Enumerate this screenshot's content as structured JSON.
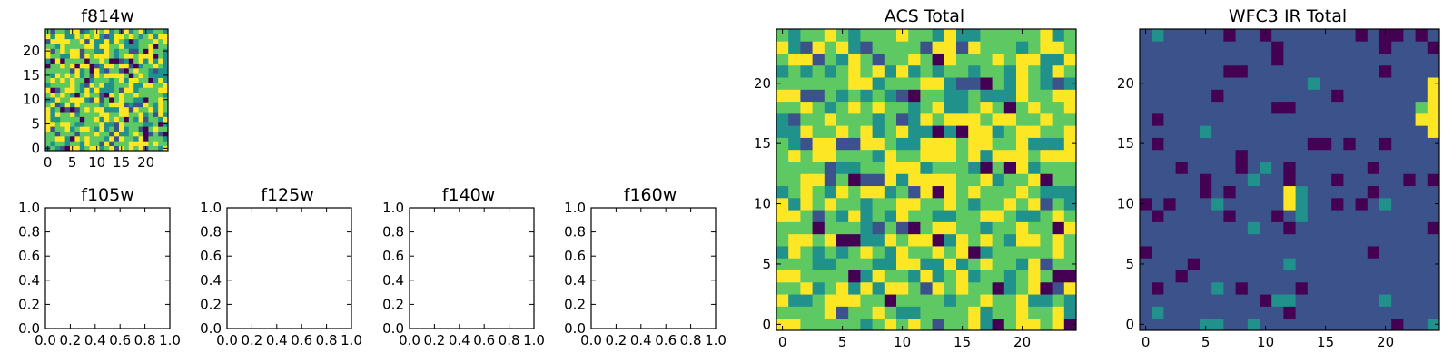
{
  "palette": [
    "#440154",
    "#3b528b",
    "#21918c",
    "#5ec962",
    "#fde725"
  ],
  "chart_data": [
    {
      "id": "f814w",
      "type": "heatmap",
      "title": "f814w",
      "grid": [
        25,
        25
      ],
      "xlim": [
        -0.5,
        24.5
      ],
      "ylim": [
        -0.5,
        24.5
      ],
      "xticks": [
        0,
        5,
        10,
        15,
        20
      ],
      "yticks": [
        0,
        5,
        10,
        15,
        20
      ],
      "xtick_labels": [
        "0",
        "5",
        "10",
        "15",
        "20"
      ],
      "ytick_labels": [
        "0",
        "5",
        "10",
        "15",
        "20"
      ],
      "level_weights": [
        0.05,
        0.08,
        0.18,
        0.37,
        0.32
      ],
      "seed": 814
    },
    {
      "id": "f105w",
      "type": "heatmap",
      "title": "f105w",
      "xlim": [
        0,
        1
      ],
      "ylim": [
        0,
        1
      ],
      "xticks": [
        0,
        0.2,
        0.4,
        0.6,
        0.8,
        1
      ],
      "yticks": [
        0,
        0.2,
        0.4,
        0.6,
        0.8,
        1
      ],
      "xtick_labels": [
        "0.0",
        "0.2",
        "0.4",
        "0.6",
        "0.8",
        "1.0"
      ],
      "ytick_labels": [
        "0.0",
        "0.2",
        "0.4",
        "0.6",
        "0.8",
        "1.0"
      ]
    },
    {
      "id": "f125w",
      "type": "heatmap",
      "title": "f125w",
      "xlim": [
        0,
        1
      ],
      "ylim": [
        0,
        1
      ],
      "xticks": [
        0,
        0.2,
        0.4,
        0.6,
        0.8,
        1
      ],
      "yticks": [
        0,
        0.2,
        0.4,
        0.6,
        0.8,
        1
      ],
      "xtick_labels": [
        "0.0",
        "0.2",
        "0.4",
        "0.6",
        "0.8",
        "1.0"
      ],
      "ytick_labels": [
        "0.0",
        "0.2",
        "0.4",
        "0.6",
        "0.8",
        "1.0"
      ]
    },
    {
      "id": "f140w",
      "type": "heatmap",
      "title": "f140w",
      "xlim": [
        0,
        1
      ],
      "ylim": [
        0,
        1
      ],
      "xticks": [
        0,
        0.2,
        0.4,
        0.6,
        0.8,
        1
      ],
      "yticks": [
        0,
        0.2,
        0.4,
        0.6,
        0.8,
        1
      ],
      "xtick_labels": [
        "0.0",
        "0.2",
        "0.4",
        "0.6",
        "0.8",
        "1.0"
      ],
      "ytick_labels": [
        "0.0",
        "0.2",
        "0.4",
        "0.6",
        "0.8",
        "1.0"
      ]
    },
    {
      "id": "f160w",
      "type": "heatmap",
      "title": "f160w",
      "xlim": [
        0,
        1
      ],
      "ylim": [
        0,
        1
      ],
      "xticks": [
        0,
        0.2,
        0.4,
        0.6,
        0.8,
        1
      ],
      "yticks": [
        0,
        0.2,
        0.4,
        0.6,
        0.8,
        1
      ],
      "xtick_labels": [
        "0.0",
        "0.2",
        "0.4",
        "0.6",
        "0.8",
        "1.0"
      ],
      "ytick_labels": [
        "0.0",
        "0.2",
        "0.4",
        "0.6",
        "0.8",
        "1.0"
      ]
    },
    {
      "id": "acs_total",
      "type": "heatmap",
      "title": "ACS Total",
      "grid": [
        25,
        25
      ],
      "xlim": [
        -0.5,
        24.5
      ],
      "ylim": [
        -0.5,
        24.5
      ],
      "xticks": [
        0,
        5,
        10,
        15,
        20
      ],
      "yticks": [
        0,
        5,
        10,
        15,
        20
      ],
      "xtick_labels": [
        "0",
        "5",
        "10",
        "15",
        "20"
      ],
      "ytick_labels": [
        "0",
        "5",
        "10",
        "15",
        "20"
      ],
      "level_weights": [
        0.04,
        0.06,
        0.18,
        0.42,
        0.3
      ],
      "seed": 2024
    },
    {
      "id": "wfc3_ir_total",
      "type": "heatmap",
      "title": "WFC3 IR Total",
      "grid": [
        25,
        25
      ],
      "xlim": [
        -0.5,
        24.5
      ],
      "ylim": [
        -0.5,
        24.5
      ],
      "xticks": [
        0,
        5,
        10,
        15,
        20
      ],
      "yticks": [
        0,
        5,
        10,
        15,
        20
      ],
      "xtick_labels": [
        "0",
        "5",
        "10",
        "15",
        "20"
      ],
      "ytick_labels": [
        "0",
        "5",
        "10",
        "15",
        "20"
      ],
      "level_weights": [
        0.1,
        0.86,
        0.04,
        0.0,
        0.0
      ],
      "seed": 1605,
      "highlights": [
        {
          "x": 12,
          "y": 11,
          "level": 4
        },
        {
          "x": 12,
          "y": 10,
          "level": 4
        },
        {
          "x": 13,
          "y": 11,
          "level": 2
        },
        {
          "x": 13,
          "y": 10,
          "level": 2
        },
        {
          "x": 24,
          "y": 20,
          "level": 4
        },
        {
          "x": 24,
          "y": 19,
          "level": 4
        },
        {
          "x": 24,
          "y": 18,
          "level": 4
        },
        {
          "x": 24,
          "y": 17,
          "level": 4
        },
        {
          "x": 24,
          "y": 16,
          "level": 4
        },
        {
          "x": 23,
          "y": 17,
          "level": 4
        },
        {
          "x": 23,
          "y": 18,
          "level": 3
        }
      ]
    }
  ]
}
